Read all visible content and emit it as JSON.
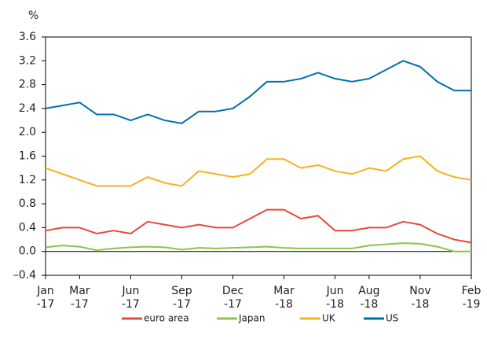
{
  "chart_data": {
    "type": "line",
    "y_label": "%",
    "x": [
      "2017-01",
      "2017-02",
      "2017-03",
      "2017-04",
      "2017-05",
      "2017-06",
      "2017-07",
      "2017-08",
      "2017-09",
      "2017-10",
      "2017-11",
      "2017-12",
      "2018-01",
      "2018-02",
      "2018-03",
      "2018-04",
      "2018-05",
      "2018-06",
      "2018-07",
      "2018-08",
      "2018-09",
      "2018-10",
      "2018-11",
      "2018-12",
      "2019-01",
      "2019-02"
    ],
    "xticks": [
      {
        "value": "2017-01",
        "label": "Jan\n-17"
      },
      {
        "value": "2017-03",
        "label": "Mar\n-17"
      },
      {
        "value": "2017-06",
        "label": "Jun\n-17"
      },
      {
        "value": "2017-09",
        "label": "Sep\n-17"
      },
      {
        "value": "2017-12",
        "label": "Dec\n-17"
      },
      {
        "value": "2018-03",
        "label": "Mar\n-18"
      },
      {
        "value": "2018-06",
        "label": "Jun\n-18"
      },
      {
        "value": "2018-08",
        "label": "Aug\n-18"
      },
      {
        "value": "2018-11",
        "label": "Nov\n-18"
      },
      {
        "value": "2019-02",
        "label": "Feb\n-19"
      }
    ],
    "ylim": [
      -0.4,
      3.6
    ],
    "yticks": [
      {
        "value": -0.4,
        "label": "–0.4"
      },
      {
        "value": 0,
        "label": "0.0"
      },
      0.4,
      0.8,
      1.2,
      1.6,
      {
        "value": 2,
        "label": "2.0"
      },
      2.4,
      2.8,
      3.2,
      3.6
    ],
    "legend": "bottom",
    "series": [
      {
        "name": "euro area",
        "color": "#e8483a",
        "values": [
          0.35,
          0.4,
          0.4,
          0.3,
          0.35,
          0.3,
          0.5,
          0.45,
          0.4,
          0.45,
          0.4,
          0.4,
          0.55,
          0.7,
          0.7,
          0.55,
          0.6,
          0.35,
          0.35,
          0.4,
          0.4,
          0.5,
          0.45,
          0.3,
          0.2,
          0.15
        ]
      },
      {
        "name": "Japan",
        "color": "#8dc63f",
        "values": [
          0.07,
          0.1,
          0.08,
          0.02,
          0.05,
          0.07,
          0.08,
          0.07,
          0.03,
          0.06,
          0.05,
          0.06,
          0.07,
          0.08,
          0.06,
          0.05,
          0.05,
          0.05,
          0.05,
          0.1,
          0.12,
          0.14,
          0.13,
          0.08,
          0.0,
          0.0
        ]
      },
      {
        "name": "UK",
        "color": "#f7b21c",
        "values": [
          1.4,
          1.3,
          1.2,
          1.1,
          1.1,
          1.1,
          1.25,
          1.15,
          1.1,
          1.35,
          1.3,
          1.25,
          1.3,
          1.55,
          1.55,
          1.4,
          1.45,
          1.35,
          1.3,
          1.4,
          1.35,
          1.55,
          1.6,
          1.35,
          1.25,
          1.2
        ]
      },
      {
        "name": "US",
        "color": "#0071a8",
        "values": [
          2.4,
          2.45,
          2.5,
          2.3,
          2.3,
          2.2,
          2.3,
          2.2,
          2.15,
          2.35,
          2.35,
          2.4,
          2.6,
          2.85,
          2.85,
          2.9,
          3.0,
          2.9,
          2.85,
          2.9,
          3.05,
          3.2,
          3.1,
          2.85,
          2.7,
          2.7
        ]
      }
    ]
  }
}
